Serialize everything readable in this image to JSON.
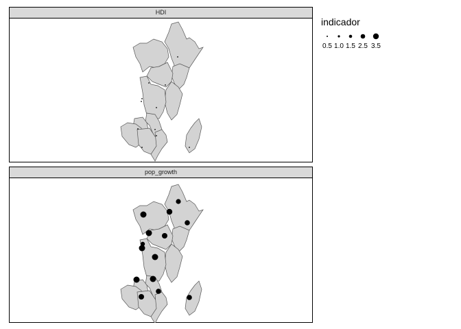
{
  "panels": [
    {
      "strip_label": "HDI"
    },
    {
      "strip_label": "pop_growth"
    }
  ],
  "legend": {
    "title": "indicador",
    "keys": [
      {
        "label": "0.5",
        "value": 0.5
      },
      {
        "label": "1.0",
        "value": 1.0
      },
      {
        "label": "1.5",
        "value": 1.5
      },
      {
        "label": "2.5",
        "value": 2.5
      },
      {
        "label": "3.5",
        "value": 3.5
      }
    ]
  },
  "colors": {
    "land_fill": "#d3d3d3",
    "border": "#555555",
    "point": "#000000",
    "strip_bg": "#d9d9d9"
  }
}
